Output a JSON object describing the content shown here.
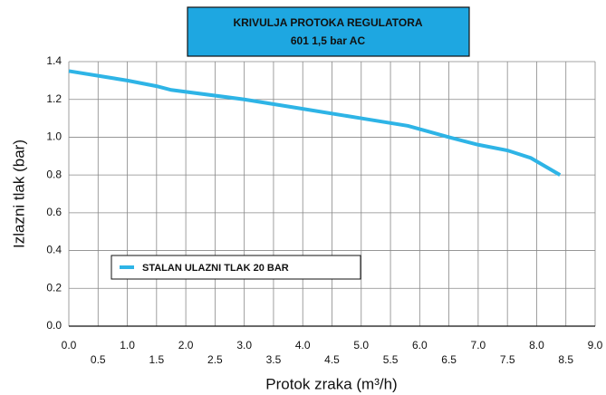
{
  "chart_data": {
    "type": "line",
    "title": "KRIVULJA PROTOKA REGULATORA",
    "subtitle": "601 1,5 bar AC",
    "x_label": "Protok zraka (m³/h)",
    "y_label": "Izlazni tlak (bar)",
    "x": [
      0,
      1,
      1.5,
      1.75,
      3,
      4,
      5,
      5.8,
      6.5,
      7,
      7.5,
      7.9,
      8.4
    ],
    "series": [
      {
        "name": "STALAN ULAZNI TLAK 20 BAR",
        "color": "#2eb4e6",
        "values": [
          1.35,
          1.3,
          1.27,
          1.25,
          1.2,
          1.15,
          1.1,
          1.06,
          1.0,
          0.96,
          0.93,
          0.89,
          0.8
        ]
      }
    ],
    "xlim": [
      0,
      9
    ],
    "xticks": [
      {
        "value": 0,
        "label": "0.0"
      },
      0.5,
      {
        "value": 1,
        "label": "1.0"
      },
      1.5,
      {
        "value": 2,
        "label": "2.0"
      },
      2.5,
      {
        "value": 3,
        "label": "3.0"
      },
      3.5,
      {
        "value": 4,
        "label": "4.0"
      },
      4.5,
      {
        "value": 5,
        "label": "5.0"
      },
      5.5,
      {
        "value": 6,
        "label": "6.0"
      },
      6.5,
      {
        "value": 7,
        "label": "7.0"
      },
      7.5,
      {
        "value": 8,
        "label": "8.0"
      },
      8.5,
      {
        "value": 9,
        "label": "9.0"
      }
    ],
    "ylim": [
      0,
      1.4
    ],
    "yticks": [
      {
        "value": 0,
        "label": "0.0"
      },
      0.2,
      0.4,
      0.6,
      0.8,
      {
        "value": 1,
        "label": "1.0"
      },
      1.2,
      1.4
    ],
    "grid": true
  }
}
